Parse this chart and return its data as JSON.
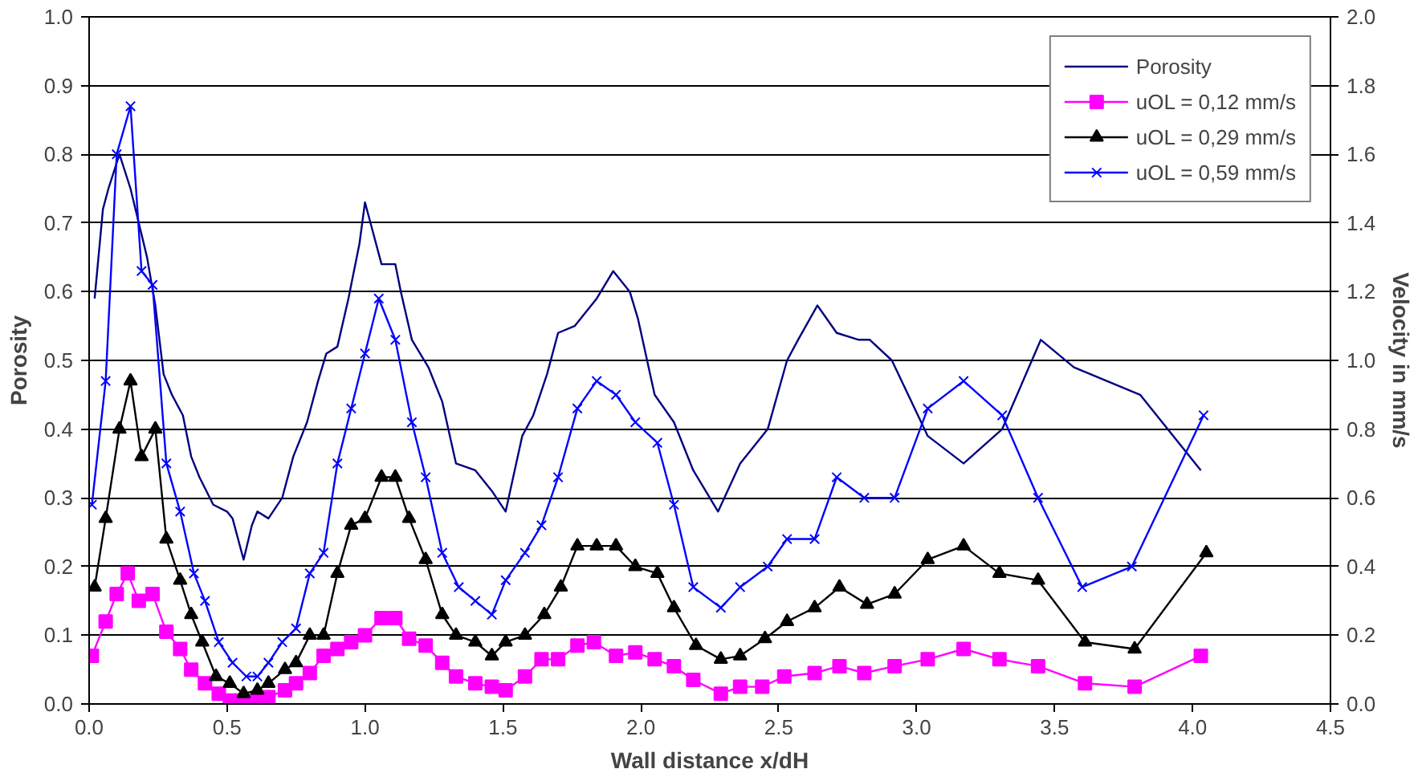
{
  "chart_data": {
    "type": "line",
    "xlabel": "Wall distance x/dH",
    "ylabel": "Porosity",
    "y2label": "Velocity in mm/s",
    "xlim": [
      0,
      4.5
    ],
    "xticks": [
      {
        "value": 0,
        "label": "0.0"
      },
      0.5,
      {
        "value": 1,
        "label": "1.0"
      },
      1.5,
      {
        "value": 2,
        "label": "2.0"
      },
      2.5,
      {
        "value": 3,
        "label": "3.0"
      },
      3.5,
      {
        "value": 4,
        "label": "4.0"
      },
      4.5
    ],
    "ylim": [
      0,
      1
    ],
    "yticks": [
      {
        "value": 0,
        "label": "0.0"
      },
      0.1,
      0.2,
      0.3,
      0.4,
      0.5,
      0.6,
      0.7,
      0.8,
      0.9,
      {
        "value": 1,
        "label": "1.0"
      }
    ],
    "y2lim": [
      0,
      2
    ],
    "y2ticks": [
      {
        "value": 0,
        "label": "0.0"
      },
      0.2,
      0.4,
      0.6,
      0.8,
      {
        "value": 1,
        "label": "1.0"
      },
      1.2,
      1.4,
      1.6,
      1.8,
      {
        "value": 2,
        "label": "2.0"
      }
    ],
    "grid": "y",
    "legend": "top right",
    "series": [
      {
        "name": "Porosity",
        "color": "#000080",
        "marker": "none",
        "x": [
          0.02,
          0.05,
          0.07,
          0.11,
          0.15,
          0.18,
          0.21,
          0.24,
          0.27,
          0.3,
          0.34,
          0.37,
          0.4,
          0.45,
          0.5,
          0.52,
          0.56,
          0.59,
          0.61,
          0.65,
          0.7,
          0.74,
          0.79,
          0.83,
          0.86,
          0.9,
          0.94,
          0.98,
          1.0,
          1.02,
          1.06,
          1.11,
          1.13,
          1.17,
          1.23,
          1.28,
          1.33,
          1.4,
          1.46,
          1.51,
          1.57,
          1.61,
          1.66,
          1.7,
          1.76,
          1.84,
          1.9,
          1.96,
          1.99,
          2.05,
          2.12,
          2.19,
          2.28,
          2.36,
          2.46,
          2.53,
          2.57,
          2.64,
          2.71,
          2.79,
          2.83,
          2.91,
          3.04,
          3.17,
          3.31,
          3.45,
          3.57,
          3.81,
          4.03
        ],
        "values": [
          0.59,
          0.72,
          0.75,
          0.8,
          0.75,
          0.7,
          0.65,
          0.58,
          0.48,
          0.45,
          0.42,
          0.36,
          0.33,
          0.29,
          0.28,
          0.27,
          0.21,
          0.26,
          0.28,
          0.27,
          0.3,
          0.36,
          0.41,
          0.47,
          0.51,
          0.52,
          0.59,
          0.67,
          0.73,
          0.7,
          0.64,
          0.64,
          0.6,
          0.53,
          0.49,
          0.44,
          0.35,
          0.34,
          0.31,
          0.28,
          0.39,
          0.42,
          0.48,
          0.54,
          0.55,
          0.59,
          0.63,
          0.6,
          0.56,
          0.45,
          0.41,
          0.34,
          0.28,
          0.35,
          0.4,
          0.5,
          0.53,
          0.58,
          0.54,
          0.53,
          0.53,
          0.5,
          0.39,
          0.35,
          0.4,
          0.53,
          0.49,
          0.45,
          0.34
        ]
      },
      {
        "name": "uOL = 0,12 mm/s",
        "color": "#ff00ff",
        "marker": "square",
        "axis": "y2",
        "x": [
          0.01,
          0.06,
          0.1,
          0.14,
          0.18,
          0.23,
          0.28,
          0.33,
          0.37,
          0.42,
          0.47,
          0.51,
          0.55,
          0.6,
          0.65,
          0.71,
          0.75,
          0.8,
          0.85,
          0.9,
          0.95,
          1.0,
          1.06,
          1.11,
          1.16,
          1.22,
          1.28,
          1.33,
          1.4,
          1.46,
          1.51,
          1.58,
          1.64,
          1.7,
          1.77,
          1.83,
          1.91,
          1.98,
          2.05,
          2.12,
          2.19,
          2.29,
          2.36,
          2.44,
          2.52,
          2.63,
          2.72,
          2.81,
          2.92,
          3.04,
          3.17,
          3.3,
          3.44,
          3.61,
          3.79,
          4.03
        ],
        "values": [
          0.14,
          0.24,
          0.32,
          0.38,
          0.3,
          0.32,
          0.21,
          0.16,
          0.1,
          0.06,
          0.03,
          0.01,
          0.01,
          0.01,
          0.02,
          0.04,
          0.06,
          0.09,
          0.14,
          0.16,
          0.18,
          0.2,
          0.25,
          0.25,
          0.19,
          0.17,
          0.12,
          0.08,
          0.06,
          0.05,
          0.04,
          0.08,
          0.13,
          0.13,
          0.17,
          0.18,
          0.14,
          0.15,
          0.13,
          0.11,
          0.07,
          0.03,
          0.05,
          0.05,
          0.08,
          0.09,
          0.11,
          0.09,
          0.11,
          0.13,
          0.16,
          0.13,
          0.11,
          0.06,
          0.05,
          0.14
        ]
      },
      {
        "name": "uOL = 0,29 mm/s",
        "color": "#000000",
        "marker": "triangle",
        "axis": "y2",
        "x": [
          0.02,
          0.06,
          0.11,
          0.15,
          0.19,
          0.24,
          0.28,
          0.33,
          0.37,
          0.41,
          0.46,
          0.51,
          0.56,
          0.61,
          0.65,
          0.71,
          0.75,
          0.8,
          0.85,
          0.9,
          0.95,
          1.0,
          1.06,
          1.11,
          1.16,
          1.22,
          1.28,
          1.33,
          1.4,
          1.46,
          1.51,
          1.58,
          1.65,
          1.71,
          1.77,
          1.84,
          1.91,
          1.98,
          2.06,
          2.12,
          2.2,
          2.29,
          2.36,
          2.45,
          2.53,
          2.63,
          2.72,
          2.82,
          2.92,
          3.04,
          3.17,
          3.3,
          3.44,
          3.61,
          3.79,
          4.05
        ],
        "values": [
          0.34,
          0.54,
          0.8,
          0.94,
          0.72,
          0.8,
          0.48,
          0.36,
          0.26,
          0.18,
          0.08,
          0.06,
          0.03,
          0.04,
          0.06,
          0.1,
          0.12,
          0.2,
          0.2,
          0.38,
          0.52,
          0.54,
          0.66,
          0.66,
          0.54,
          0.42,
          0.26,
          0.2,
          0.18,
          0.14,
          0.18,
          0.2,
          0.26,
          0.34,
          0.46,
          0.46,
          0.46,
          0.4,
          0.38,
          0.28,
          0.17,
          0.13,
          0.14,
          0.19,
          0.24,
          0.28,
          0.34,
          0.29,
          0.32,
          0.42,
          0.46,
          0.38,
          0.36,
          0.18,
          0.16,
          0.44
        ]
      },
      {
        "name": "uOL = 0,59 mm/s",
        "color": "#0000ff",
        "marker": "cross",
        "axis": "y2",
        "x": [
          0.01,
          0.06,
          0.1,
          0.15,
          0.19,
          0.23,
          0.28,
          0.33,
          0.38,
          0.42,
          0.47,
          0.52,
          0.57,
          0.61,
          0.65,
          0.7,
          0.75,
          0.8,
          0.85,
          0.9,
          0.95,
          1.0,
          1.05,
          1.11,
          1.17,
          1.22,
          1.28,
          1.34,
          1.4,
          1.46,
          1.51,
          1.58,
          1.64,
          1.7,
          1.77,
          1.84,
          1.91,
          1.98,
          2.06,
          2.12,
          2.19,
          2.29,
          2.36,
          2.46,
          2.53,
          2.63,
          2.71,
          2.81,
          2.92,
          3.04,
          3.17,
          3.31,
          3.44,
          3.6,
          3.78,
          4.04
        ],
        "values": [
          0.58,
          0.94,
          1.6,
          1.74,
          1.26,
          1.22,
          0.7,
          0.56,
          0.38,
          0.3,
          0.18,
          0.12,
          0.08,
          0.08,
          0.12,
          0.18,
          0.22,
          0.38,
          0.44,
          0.7,
          0.86,
          1.02,
          1.18,
          1.06,
          0.82,
          0.66,
          0.44,
          0.34,
          0.3,
          0.26,
          0.36,
          0.44,
          0.52,
          0.66,
          0.86,
          0.94,
          0.9,
          0.82,
          0.76,
          0.58,
          0.34,
          0.28,
          0.34,
          0.4,
          0.48,
          0.48,
          0.66,
          0.6,
          0.6,
          0.86,
          0.94,
          0.84,
          0.6,
          0.34,
          0.4,
          0.84
        ]
      }
    ]
  }
}
